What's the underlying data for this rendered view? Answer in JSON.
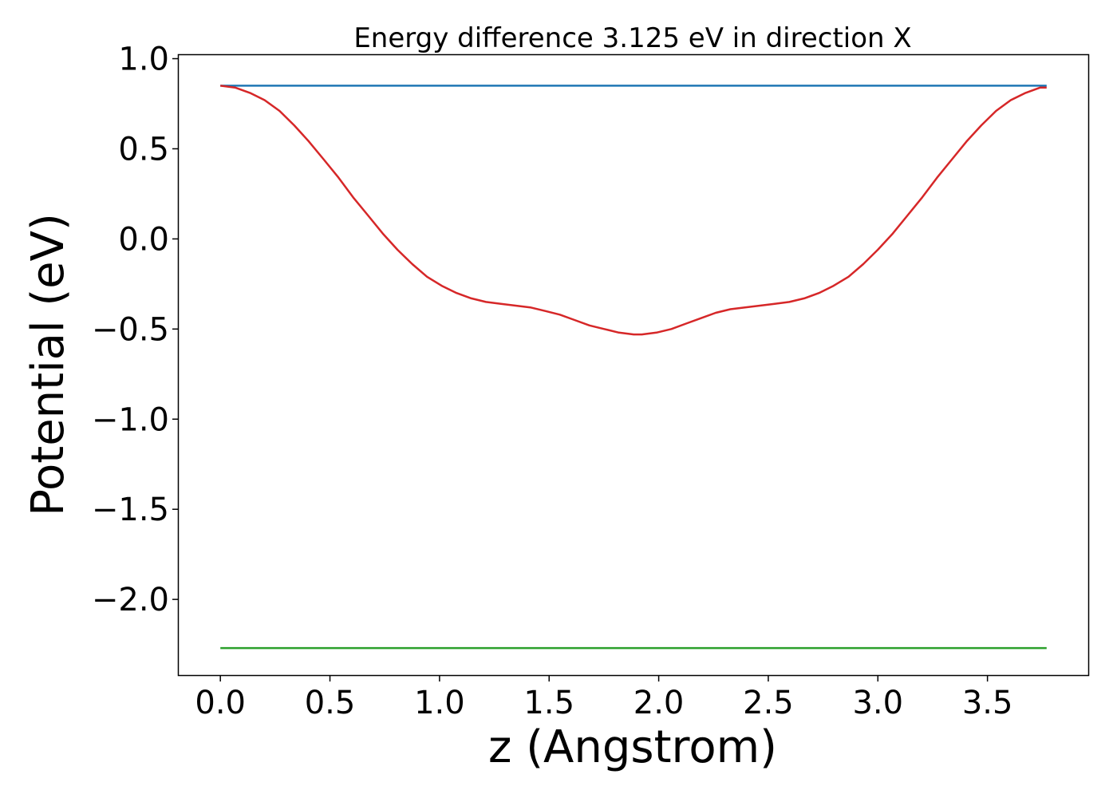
{
  "chart_data": {
    "type": "line",
    "title": "Energy difference 3.125 eV in direction X",
    "xlabel": "z (Angstrom)",
    "ylabel": "Potential (eV)",
    "xlim": [
      -0.19,
      3.96
    ],
    "ylim": [
      -2.42,
      1.02
    ],
    "xticks": [
      0.0,
      0.5,
      1.0,
      1.5,
      2.0,
      2.5,
      3.0,
      3.5
    ],
    "xtick_labels": [
      "0.0",
      "0.5",
      "1.0",
      "1.5",
      "2.0",
      "2.5",
      "3.0",
      "3.5"
    ],
    "yticks": [
      1.0,
      0.5,
      0.0,
      -0.5,
      -1.0,
      -1.5,
      -2.0
    ],
    "ytick_labels": [
      "1.0",
      "0.5",
      "0.0",
      "−0.5",
      "−1.0",
      "−1.5",
      "−2.0"
    ],
    "grid": false,
    "series": [
      {
        "color": "#1f77b4",
        "x": [
          0.0,
          3.77
        ],
        "y": [
          0.85,
          0.85
        ]
      },
      {
        "color": "#2ca02c",
        "x": [
          0.0,
          3.77
        ],
        "y": [
          -2.27,
          -2.27
        ]
      },
      {
        "color": "#d62728",
        "x": [
          0.0,
          0.067,
          0.135,
          0.202,
          0.27,
          0.337,
          0.404,
          0.472,
          0.539,
          0.606,
          0.674,
          0.741,
          0.808,
          0.876,
          0.943,
          1.01,
          1.078,
          1.145,
          1.212,
          1.28,
          1.347,
          1.414,
          1.482,
          1.549,
          1.616,
          1.684,
          1.751,
          1.818,
          1.886,
          1.923,
          1.99,
          2.058,
          2.125,
          2.192,
          2.26,
          2.327,
          2.394,
          2.462,
          2.529,
          2.596,
          2.664,
          2.731,
          2.798,
          2.866,
          2.933,
          3.0,
          3.068,
          3.135,
          3.202,
          3.27,
          3.337,
          3.404,
          3.472,
          3.539,
          3.606,
          3.674,
          3.741,
          3.77
        ],
        "y": [
          0.85,
          0.84,
          0.81,
          0.77,
          0.71,
          0.63,
          0.54,
          0.44,
          0.34,
          0.23,
          0.13,
          0.03,
          -0.06,
          -0.14,
          -0.21,
          -0.26,
          -0.3,
          -0.33,
          -0.35,
          -0.36,
          -0.37,
          -0.38,
          -0.4,
          -0.42,
          -0.45,
          -0.48,
          -0.5,
          -0.52,
          -0.53,
          -0.53,
          -0.52,
          -0.5,
          -0.47,
          -0.44,
          -0.41,
          -0.39,
          -0.38,
          -0.37,
          -0.36,
          -0.35,
          -0.33,
          -0.3,
          -0.26,
          -0.21,
          -0.14,
          -0.06,
          0.03,
          0.13,
          0.23,
          0.34,
          0.44,
          0.54,
          0.63,
          0.71,
          0.77,
          0.81,
          0.84,
          0.84
        ]
      }
    ]
  }
}
